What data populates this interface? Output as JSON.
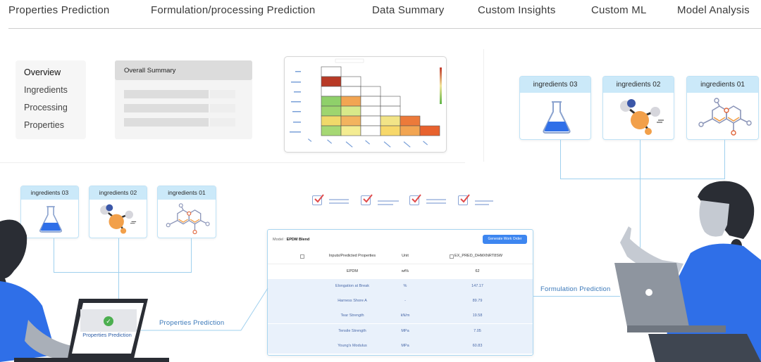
{
  "nav": {
    "items": [
      "Properties Prediction",
      "Formulation/processing Prediction",
      "Data Summary",
      "Custom Insights",
      "Custom ML",
      "Model Analysis"
    ]
  },
  "overview_menu": {
    "items": [
      "Overview",
      "Ingredients",
      "Processing",
      "Properties"
    ]
  },
  "summary_card": {
    "title": "Overall Summary"
  },
  "ingredients_right": {
    "cards": [
      "ingredients 03",
      "ingredients 02",
      "ingredients 01"
    ],
    "icons": [
      "flask-icon",
      "molecule-ball-icon",
      "molecule-structure-icon"
    ]
  },
  "ingredients_left": {
    "cards": [
      "ingredients 03",
      "ingredients 02",
      "ingredients 01"
    ],
    "icons": [
      "flask-icon",
      "molecule-ball-icon",
      "molecule-structure-icon"
    ]
  },
  "laptop_left": {
    "label": "Properties Prediction"
  },
  "flows": {
    "properties": "Properties Prediction",
    "formulation": "Formulation Prediction"
  },
  "table": {
    "model_label": "Model :",
    "model_name": "EPDM Blend",
    "button": "Generate Work Order",
    "headers": [
      "Inputs/Predicted Properties",
      "Unit",
      "EX_PRED_DHMXNRT8SW"
    ],
    "rows": [
      [
        "EPDM",
        "wt%",
        "62"
      ],
      [
        "Elongation at Break",
        "%",
        "147.17"
      ],
      [
        "Harness Shore A",
        "-",
        "89.79"
      ],
      [
        "Tear Strength",
        "kN/m",
        "19.58"
      ],
      [
        "Tensile Strength",
        "MPa",
        "7.05"
      ],
      [
        "Young's Modulus",
        "MPa",
        "60.83"
      ]
    ]
  },
  "colors": {
    "accent_blue": "#3d86f0",
    "card_header": "#cbe9f9",
    "flask_blue": "#2f6fe8",
    "skin": "#a9afb8",
    "shirt": "#2f6fe8",
    "hair": "#2a2d34"
  }
}
